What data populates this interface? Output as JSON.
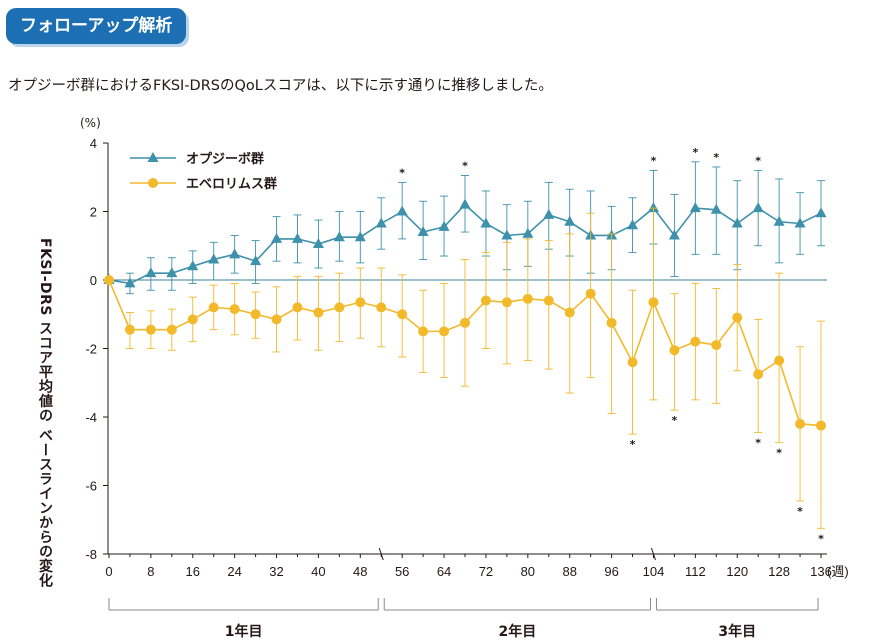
{
  "header": {
    "badge": "フォローアップ解析"
  },
  "subtitle": "オプジーボ群におけるFKSI-DRSのQoLスコアは、以下に示す通りに推移しました。",
  "chart_data": {
    "type": "line",
    "unit_label": "(%)",
    "ylabel": "FKSI-DRS スコア平均値の ベースラインからの変化",
    "xlabel": "(週)",
    "ylim": [
      -8,
      4
    ],
    "yticks": [
      4,
      2,
      0,
      -2,
      -4,
      -6,
      -8
    ],
    "xlim": [
      0,
      136
    ],
    "xticks": [
      0,
      8,
      16,
      24,
      32,
      40,
      48,
      56,
      64,
      72,
      80,
      88,
      96,
      104,
      112,
      120,
      128,
      136
    ],
    "grid": false,
    "legend_position": "top-left",
    "x": [
      0,
      4,
      8,
      12,
      16,
      20,
      24,
      28,
      32,
      36,
      40,
      44,
      48,
      52,
      56,
      60,
      64,
      68,
      72,
      76,
      80,
      84,
      88,
      92,
      96,
      100,
      104,
      108,
      112,
      116,
      120,
      124,
      128,
      132,
      136
    ],
    "series": [
      {
        "name": "オプジーボ群",
        "color": "#3d91ab",
        "marker": "triangle",
        "values": [
          0,
          -0.1,
          0.2,
          0.2,
          0.4,
          0.6,
          0.75,
          0.55,
          1.2,
          1.2,
          1.05,
          1.25,
          1.25,
          1.65,
          2.0,
          1.4,
          1.55,
          2.2,
          1.65,
          1.3,
          1.35,
          1.9,
          1.7,
          1.3,
          1.3,
          1.6,
          2.1,
          1.3,
          2.1,
          2.05,
          1.65,
          2.1,
          1.7,
          1.65,
          1.95
        ],
        "err_low": [
          0,
          -0.4,
          -0.3,
          -0.3,
          -0.1,
          0.0,
          0.2,
          -0.1,
          0.55,
          0.5,
          0.35,
          0.55,
          0.5,
          0.9,
          1.2,
          0.6,
          0.7,
          1.4,
          0.7,
          0.3,
          0.4,
          0.9,
          0.7,
          0.2,
          0.3,
          0.8,
          1.05,
          0.1,
          0.75,
          0.75,
          0.3,
          1.0,
          0.5,
          0.75,
          1.0
        ],
        "err_high": [
          0,
          0.2,
          0.65,
          0.65,
          0.85,
          1.1,
          1.3,
          1.15,
          1.85,
          1.9,
          1.75,
          2.0,
          2.0,
          2.4,
          2.85,
          2.3,
          2.45,
          3.05,
          2.6,
          2.2,
          2.3,
          2.85,
          2.65,
          2.6,
          2.15,
          2.4,
          3.2,
          2.5,
          3.45,
          3.3,
          2.9,
          3.2,
          2.95,
          2.55,
          2.9
        ],
        "significant_x": [
          56,
          68,
          104,
          112,
          116,
          124
        ]
      },
      {
        "name": "エベロリムス群",
        "color": "#f2b92a",
        "marker": "circle",
        "values": [
          0,
          -1.45,
          -1.45,
          -1.45,
          -1.15,
          -0.8,
          -0.85,
          -1.0,
          -1.15,
          -0.8,
          -0.95,
          -0.8,
          -0.65,
          -0.8,
          -1.0,
          -1.5,
          -1.5,
          -1.25,
          -0.6,
          -0.65,
          -0.55,
          -0.6,
          -0.95,
          -0.4,
          -1.25,
          -2.4,
          -0.65,
          -2.05,
          -1.8,
          -1.9,
          -1.1,
          -2.75,
          -2.35,
          -4.2,
          -4.25
        ],
        "err_low": [
          0,
          -2.0,
          -2.0,
          -2.05,
          -1.8,
          -1.45,
          -1.6,
          -1.7,
          -2.1,
          -1.75,
          -2.05,
          -1.8,
          -1.7,
          -1.95,
          -2.25,
          -2.7,
          -2.85,
          -3.1,
          -2.0,
          -2.45,
          -2.35,
          -2.6,
          -3.3,
          -2.85,
          -3.9,
          -4.5,
          -3.5,
          -3.8,
          -3.5,
          -3.6,
          -2.65,
          -4.45,
          -4.75,
          -6.45,
          -7.25
        ],
        "err_high": [
          0,
          -0.95,
          -0.9,
          -0.85,
          -0.5,
          -0.15,
          -0.1,
          -0.35,
          -0.2,
          0.1,
          0.1,
          0.2,
          0.35,
          0.35,
          0.15,
          -0.3,
          -0.1,
          0.6,
          0.8,
          1.1,
          1.2,
          1.15,
          1.35,
          1.95,
          1.35,
          -0.3,
          2.1,
          -0.4,
          -0.1,
          -0.25,
          0.45,
          -1.15,
          0.2,
          -1.95,
          -1.2
        ],
        "significant_x": [
          100,
          108,
          124,
          128,
          132,
          136
        ]
      }
    ],
    "periods": [
      {
        "label": "1年目",
        "from": 0,
        "to": 52
      },
      {
        "label": "2年目",
        "from": 52,
        "to": 104
      },
      {
        "label": "3年目",
        "from": 104,
        "to": 136
      }
    ],
    "significance_marker": "*"
  }
}
